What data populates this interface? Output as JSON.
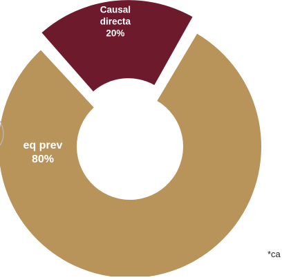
{
  "chart_data": {
    "type": "pie",
    "donut": true,
    "slices": [
      {
        "label": "Req prev",
        "label_lines": [
          "eq prev",
          "80%"
        ],
        "value": 80,
        "color": "#b8935a"
      },
      {
        "label": "Causal directa",
        "label_lines": [
          "Causal",
          "directa",
          "20%"
        ],
        "value": 20,
        "color": "#6e1a2d",
        "exploded": true
      }
    ],
    "footnote": "*ca"
  }
}
